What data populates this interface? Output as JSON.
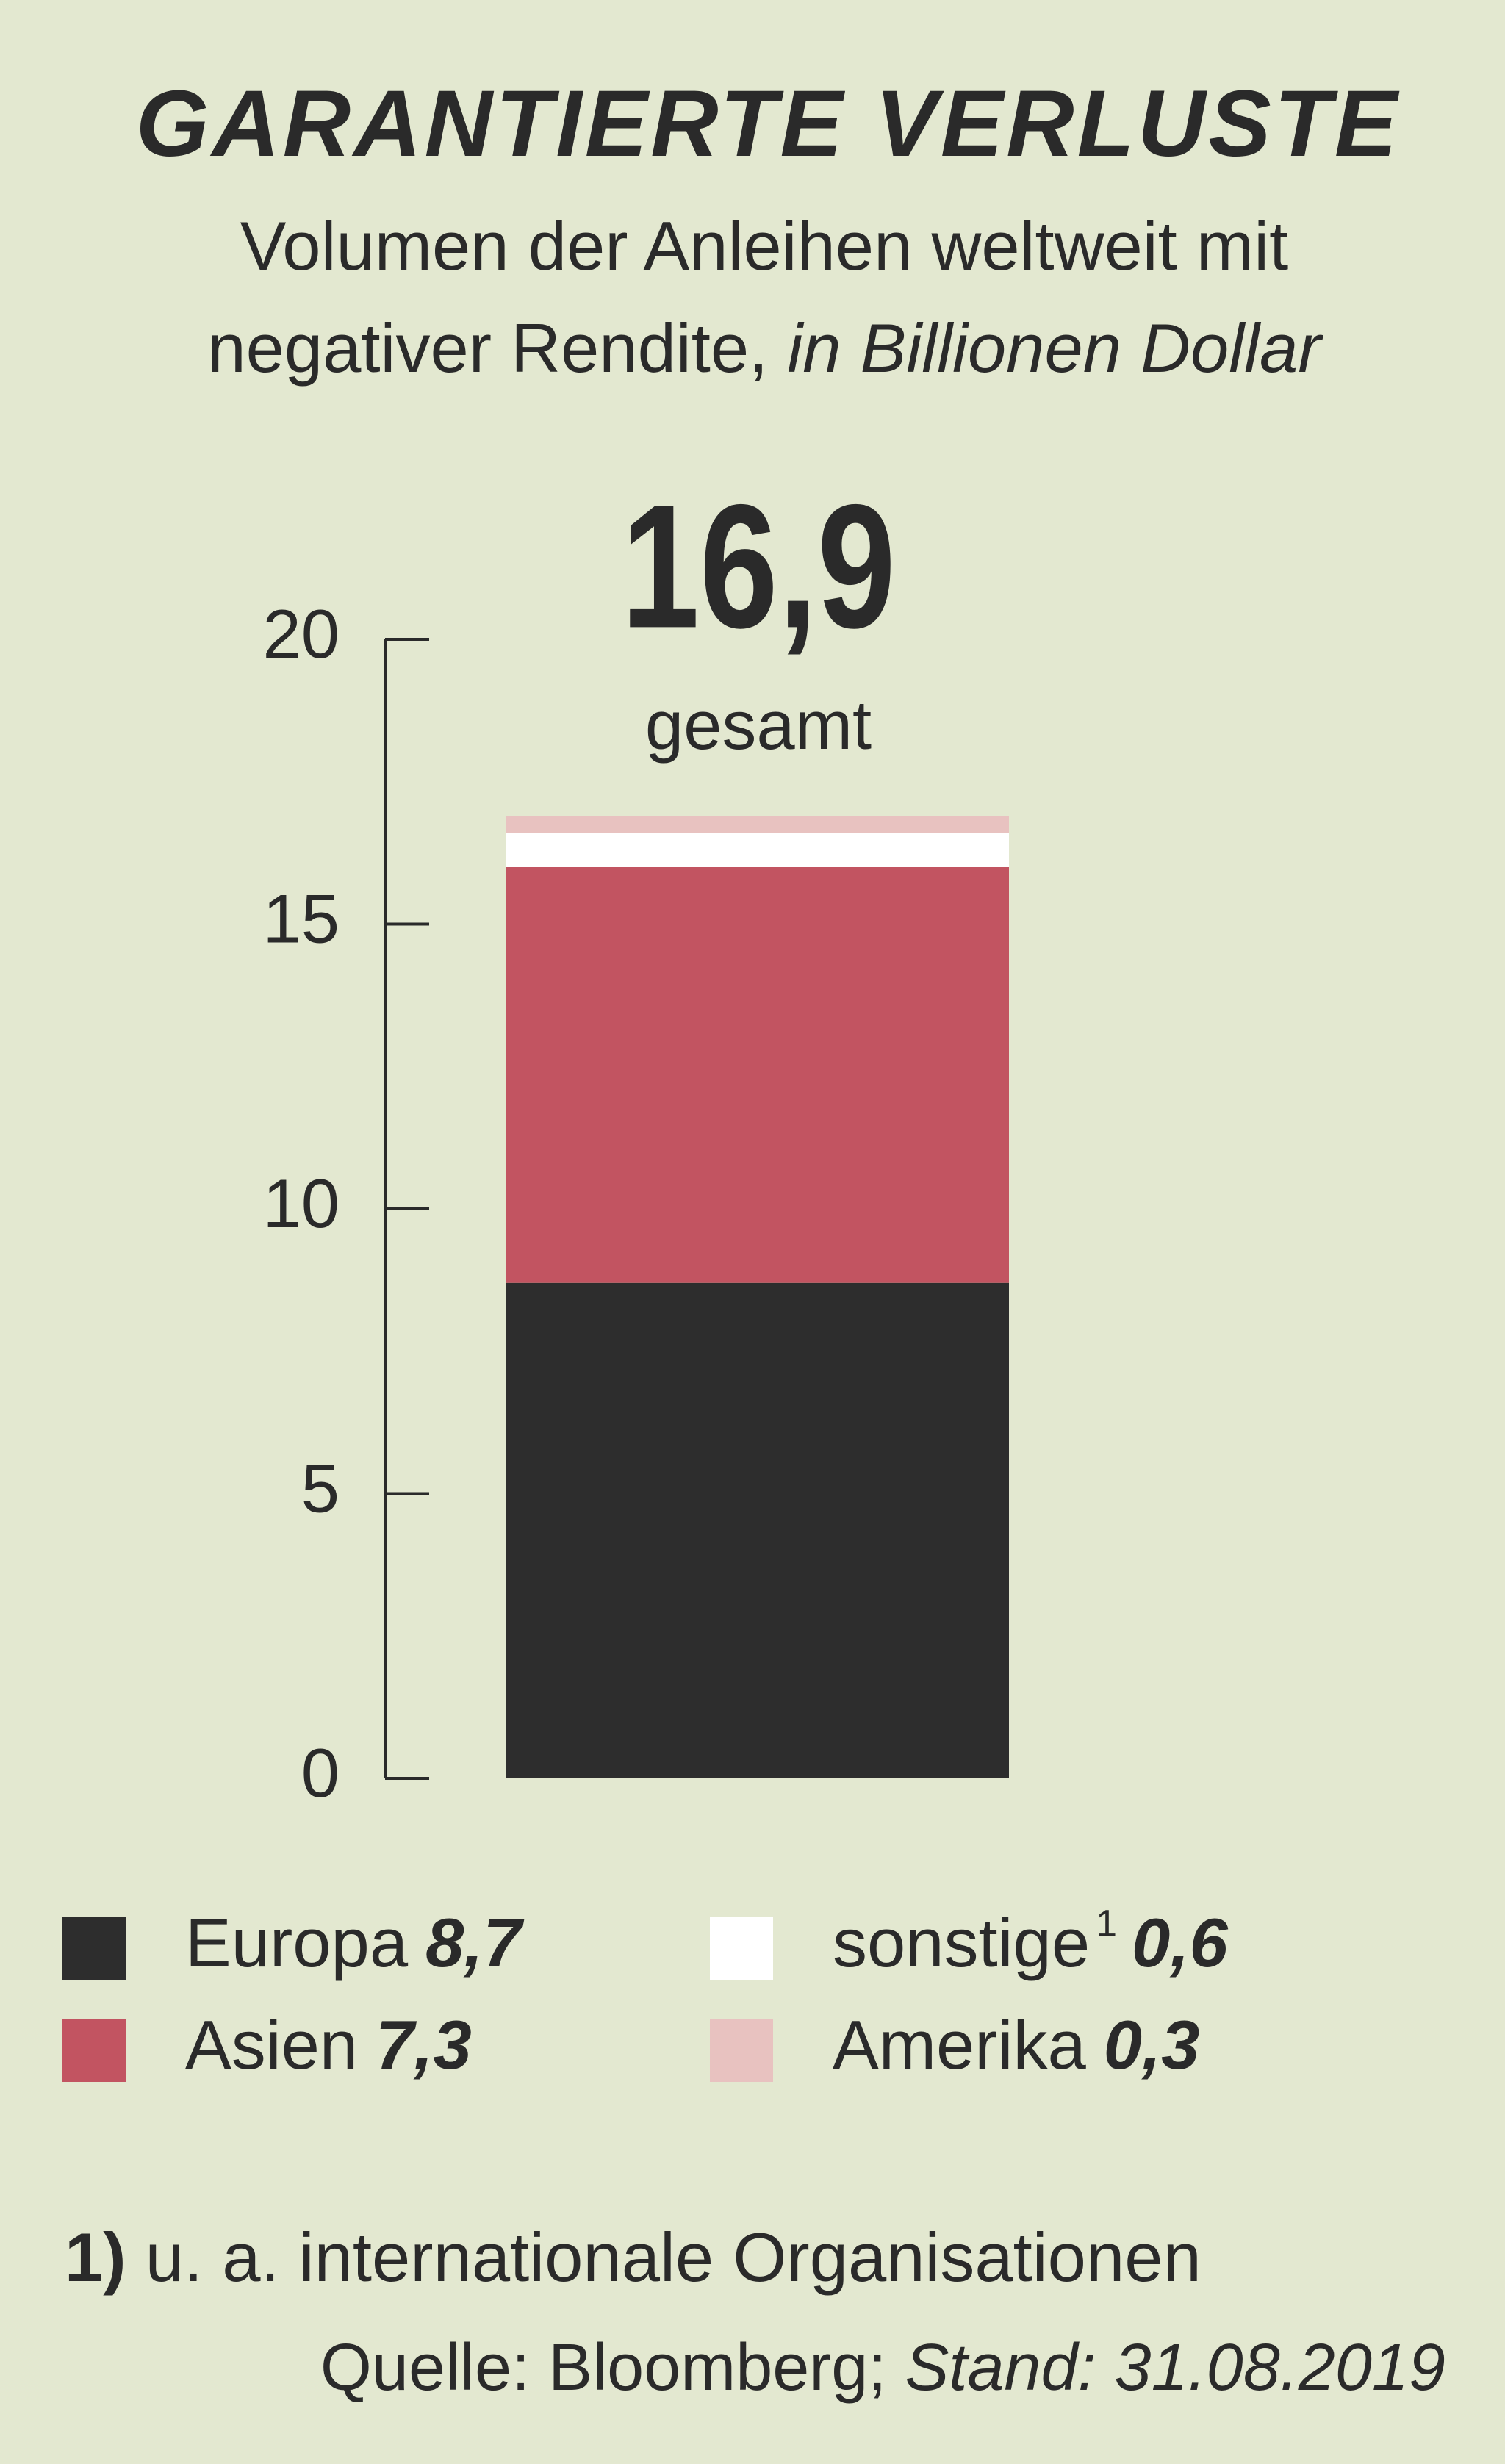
{
  "chart_data": {
    "type": "stacked_bar",
    "title": "GARANTIERTE VERLUSTE",
    "subtitle": [
      "Volumen der Anleihen weltweit mit",
      "negativer Rendite,"
    ],
    "subtitle_unit": "in Billionen Dollar",
    "categories": [
      null
    ],
    "series": [
      {
        "name": "Europa",
        "color": "#2d2d2d",
        "values": [
          8.7
        ],
        "value_labels": [
          "8,7"
        ]
      },
      {
        "name": "Asien",
        "color": "#c25461",
        "values": [
          7.3
        ],
        "value_labels": [
          "7,3"
        ]
      },
      {
        "name": "sonstige",
        "note_ref": "1",
        "color": "#ffffff",
        "values": [
          0.6
        ],
        "value_labels": [
          "0,6"
        ]
      },
      {
        "name": "Amerika",
        "color": "#e8c2c0",
        "values": [
          0.3
        ],
        "value_labels": [
          "0,3"
        ]
      }
    ],
    "total": {
      "value": 16.9,
      "label": "16,9"
    },
    "total_caption": "gesamt",
    "ylim": [
      0,
      20
    ],
    "yticks": [
      0,
      5,
      10,
      15,
      20
    ],
    "footnote": {
      "marker": "1)",
      "text": "u. a. internationale Organisationen"
    },
    "source": {
      "text": "Quelle: Bloomberg;",
      "date": "Stand: 31.08.2019"
    }
  }
}
